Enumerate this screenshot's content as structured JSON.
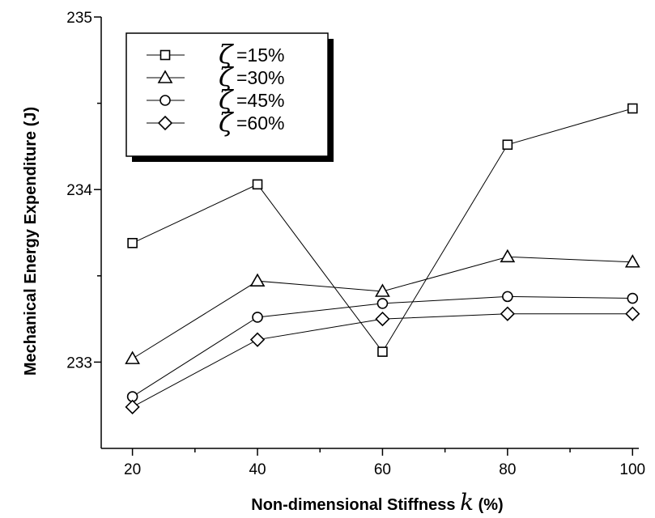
{
  "chart_data": {
    "type": "line",
    "x": [
      20,
      40,
      60,
      80,
      100
    ],
    "xlabel_prefix": "Non-dimensional Stiffness ",
    "xlabel_var": "k",
    "xlabel_suffix": "  (%)",
    "ylabel": "Mechanical Energy Expenditure (J)",
    "xlim": [
      15,
      101
    ],
    "ylim": [
      232.5,
      235
    ],
    "x_ticks": [
      "20",
      "40",
      "60",
      "80",
      "100"
    ],
    "y_ticks": [
      "233",
      "234",
      "235"
    ],
    "legend_symbol": "ζ",
    "legend_placement": "top-left",
    "grid": false,
    "series": [
      {
        "name": "=15%",
        "marker": "square",
        "values": [
          233.69,
          234.03,
          233.06,
          234.26,
          234.47
        ]
      },
      {
        "name": "=30%",
        "marker": "triangle",
        "values": [
          233.02,
          233.47,
          233.41,
          233.61,
          233.58
        ]
      },
      {
        "name": "=45%",
        "marker": "circle",
        "values": [
          232.8,
          233.26,
          233.34,
          233.38,
          233.37
        ]
      },
      {
        "name": "=60%",
        "marker": "diamond",
        "values": [
          232.74,
          233.13,
          233.25,
          233.28,
          233.28
        ]
      }
    ]
  }
}
